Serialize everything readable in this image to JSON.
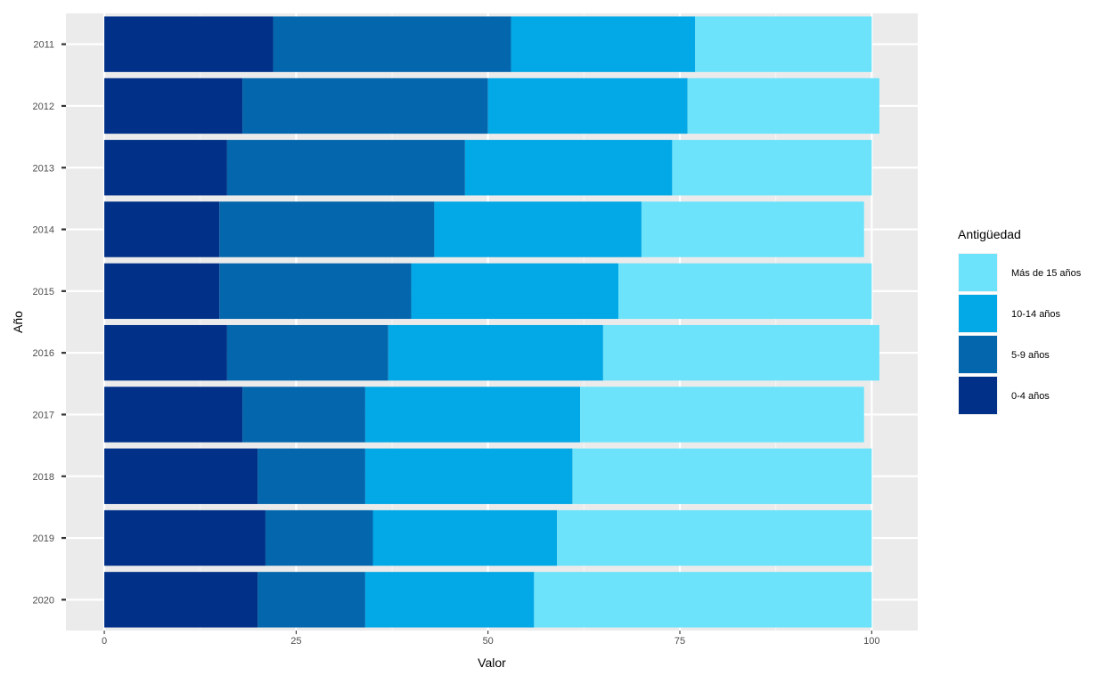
{
  "chart_data": {
    "type": "bar",
    "orientation": "horizontal",
    "stacked": true,
    "categories": [
      "2011",
      "2012",
      "2013",
      "2014",
      "2015",
      "2016",
      "2017",
      "2018",
      "2019",
      "2020"
    ],
    "series": [
      {
        "name": "0-4 años",
        "color": "#003087",
        "values": [
          22,
          18,
          16,
          15,
          15,
          16,
          18,
          20,
          21,
          20
        ]
      },
      {
        "name": "5-9 años",
        "color": "#0466ac",
        "values": [
          31,
          32,
          31,
          28,
          25,
          21,
          16,
          14,
          14,
          14
        ]
      },
      {
        "name": "10-14 años",
        "color": "#03a8e6",
        "values": [
          24,
          26,
          27,
          27,
          27,
          28,
          28,
          27,
          24,
          22
        ]
      },
      {
        "name": "Más de 15 años",
        "color": "#6ce3fb",
        "values": [
          23,
          25,
          26,
          29,
          33,
          36,
          37,
          39,
          41,
          44
        ]
      }
    ],
    "xlabel": "Valor",
    "ylabel": "Año",
    "xlim": [
      -5,
      106
    ],
    "xticks": [
      0,
      25,
      50,
      75,
      100
    ],
    "grid": true,
    "legend": {
      "title": "Antigüedad",
      "position": "right",
      "order": [
        "Más de 15 años",
        "10-14 años",
        "5-9 años",
        "0-4 años"
      ]
    }
  },
  "colors": {
    "panel_background": "#ebebeb",
    "grid_major": "#ffffff",
    "grid_minor": "#f5f5f5"
  }
}
